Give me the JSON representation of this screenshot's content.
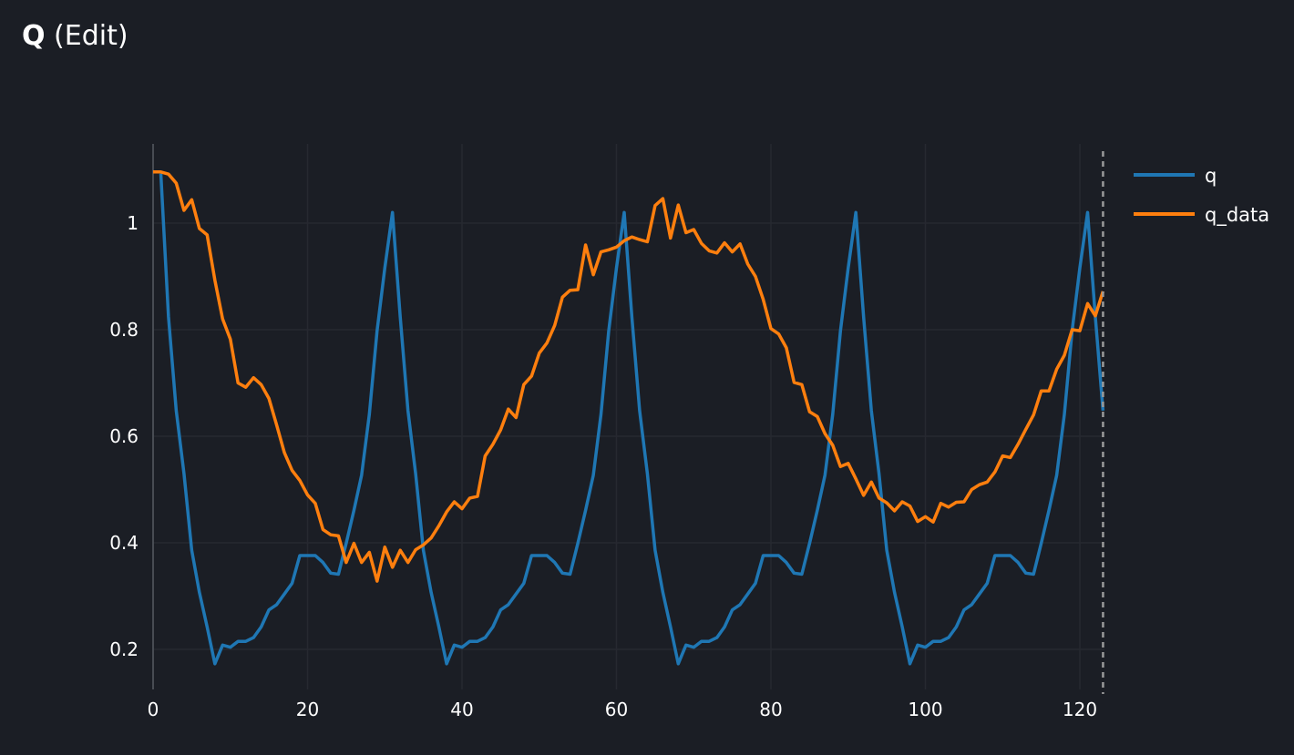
{
  "header": {
    "title_bold": "Q",
    "title_rest": " (Edit)"
  },
  "chart_data": {
    "type": "line",
    "title": "Q (Edit)",
    "xlabel": "",
    "ylabel": "",
    "xlim": [
      0,
      123
    ],
    "ylim": [
      0.145,
      1.145
    ],
    "grid": true,
    "legend_position": "top-right, outside",
    "x_ticks": [
      0,
      20,
      40,
      60,
      80,
      100,
      120
    ],
    "x_tick_labels": [
      "0",
      "20",
      "40",
      "60",
      "80",
      "100",
      "120"
    ],
    "y_ticks": [
      0.2,
      0.4,
      0.6,
      0.8,
      1
    ],
    "y_tick_labels": [
      "0.2",
      "0.4",
      "0.6",
      "0.8",
      "1"
    ],
    "vertical_marker_x": 123,
    "series": [
      {
        "name": "q",
        "color": "#1f77b4",
        "x_start": 1,
        "values": [
          1.093,
          0.824,
          0.648,
          0.53,
          0.386,
          0.307,
          0.242,
          0.173,
          0.208,
          0.204,
          0.215,
          0.215,
          0.222,
          0.242,
          0.274,
          0.284,
          0.304,
          0.324,
          0.376,
          0.376,
          0.376,
          0.363,
          0.343,
          0.341,
          0.399,
          0.461,
          0.527,
          0.641,
          0.798,
          0.916,
          1.02,
          0.824,
          0.648,
          0.53,
          0.386,
          0.307,
          0.242,
          0.173,
          0.208,
          0.204,
          0.215,
          0.215,
          0.222,
          0.242,
          0.274,
          0.284,
          0.304,
          0.324,
          0.376,
          0.376,
          0.376,
          0.363,
          0.343,
          0.341,
          0.399,
          0.461,
          0.527,
          0.641,
          0.798,
          0.916,
          1.02,
          0.824,
          0.648,
          0.53,
          0.386,
          0.307,
          0.242,
          0.173,
          0.208,
          0.204,
          0.215,
          0.215,
          0.222,
          0.242,
          0.274,
          0.284,
          0.304,
          0.324,
          0.376,
          0.376,
          0.376,
          0.363,
          0.343,
          0.341,
          0.399,
          0.461,
          0.527,
          0.641,
          0.798,
          0.916,
          1.02,
          0.824,
          0.648,
          0.53,
          0.386,
          0.307,
          0.242,
          0.173,
          0.208,
          0.204,
          0.215,
          0.215,
          0.222,
          0.242,
          0.274,
          0.284,
          0.304,
          0.324,
          0.376,
          0.376,
          0.376,
          0.363,
          0.343,
          0.341,
          0.399,
          0.461,
          0.527,
          0.641,
          0.798,
          0.916,
          1.02,
          0.824,
          0.648
        ]
      },
      {
        "name": "q_data",
        "color": "#ff7f0e",
        "x_start": 0,
        "values": [
          1.096,
          1.096,
          1.092,
          1.075,
          1.024,
          1.044,
          0.99,
          0.978,
          0.893,
          0.82,
          0.782,
          0.7,
          0.692,
          0.71,
          0.697,
          0.671,
          0.621,
          0.569,
          0.536,
          0.517,
          0.49,
          0.474,
          0.425,
          0.415,
          0.413,
          0.363,
          0.399,
          0.363,
          0.382,
          0.328,
          0.392,
          0.354,
          0.386,
          0.363,
          0.387,
          0.396,
          0.409,
          0.432,
          0.458,
          0.477,
          0.464,
          0.484,
          0.487,
          0.563,
          0.585,
          0.612,
          0.651,
          0.635,
          0.697,
          0.713,
          0.756,
          0.775,
          0.808,
          0.861,
          0.874,
          0.875,
          0.959,
          0.903,
          0.946,
          0.95,
          0.955,
          0.967,
          0.974,
          0.969,
          0.965,
          1.033,
          1.046,
          0.972,
          1.034,
          0.982,
          0.988,
          0.962,
          0.948,
          0.944,
          0.963,
          0.946,
          0.961,
          0.923,
          0.9,
          0.857,
          0.802,
          0.792,
          0.766,
          0.701,
          0.697,
          0.646,
          0.637,
          0.605,
          0.583,
          0.543,
          0.549,
          0.52,
          0.489,
          0.514,
          0.484,
          0.475,
          0.46,
          0.477,
          0.469,
          0.44,
          0.449,
          0.439,
          0.474,
          0.467,
          0.476,
          0.477,
          0.5,
          0.509,
          0.514,
          0.533,
          0.563,
          0.56,
          0.585,
          0.613,
          0.64,
          0.685,
          0.685,
          0.726,
          0.752,
          0.8,
          0.798,
          0.849,
          0.826,
          0.872
        ]
      }
    ]
  }
}
